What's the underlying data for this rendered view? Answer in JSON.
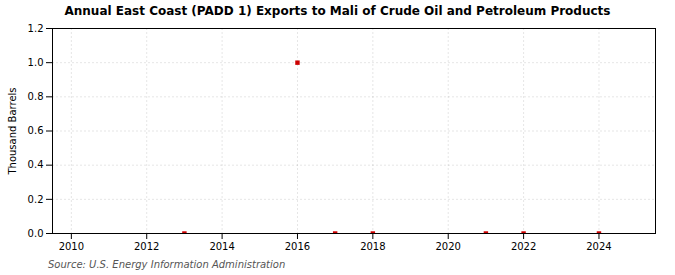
{
  "chart_data": {
    "type": "scatter",
    "title": "Annual East Coast (PADD 1) Exports to Mali of Crude Oil and Petroleum Products",
    "ylabel": "Thousand Barrels",
    "source": "Source: U.S. Energy Information Administration",
    "x": [
      2013,
      2016,
      2017,
      2018,
      2021,
      2022,
      2024
    ],
    "values": [
      0.0,
      1.0,
      0.0,
      0.0,
      0.0,
      0.0,
      0.0
    ],
    "color": "#cc0000",
    "marker": "square",
    "xlim": [
      2009.5,
      2025.5
    ],
    "ylim": [
      0.0,
      1.2
    ],
    "xticks": [
      2010,
      2012,
      2014,
      2016,
      2018,
      2020,
      2022,
      2024
    ],
    "yticks": [
      {
        "value": 0.0,
        "label": "0.0"
      },
      0.2,
      0.4,
      0.6,
      0.8,
      {
        "value": 1.0,
        "label": "1.0"
      },
      1.2
    ],
    "grid": true
  }
}
